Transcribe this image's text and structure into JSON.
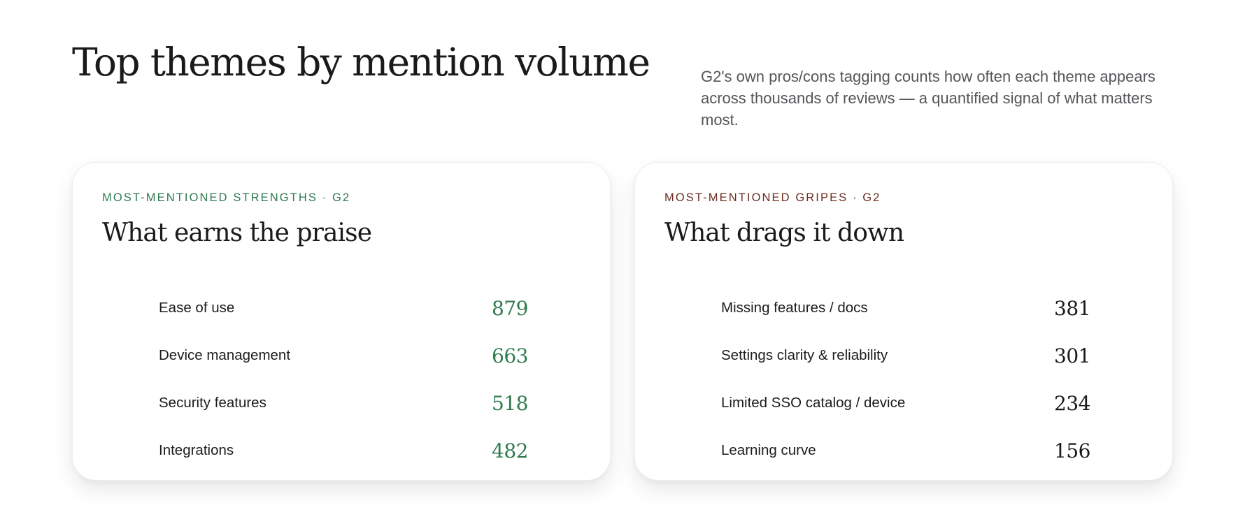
{
  "header": {
    "title": "Top themes by mention volume",
    "intro": "G2's own pros/cons tagging counts how often each theme appears across thousands of reviews — a quantified signal of what matters most."
  },
  "strengths": {
    "kicker": "Most-mentioned strengths · G2",
    "title": "What earns the praise",
    "accent": "#2f7a4f",
    "items": [
      {
        "label": "Ease of use",
        "value": "879"
      },
      {
        "label": "Device management",
        "value": "663"
      },
      {
        "label": "Security features",
        "value": "518"
      },
      {
        "label": "Integrations",
        "value": "482"
      }
    ]
  },
  "gripes": {
    "kicker": "Most-mentioned gripes · G2",
    "title": "What drags it down",
    "accent": "#6b2f22",
    "items": [
      {
        "label": "Missing features / docs",
        "value": "381"
      },
      {
        "label": "Settings clarity & reliability",
        "value": "301"
      },
      {
        "label": "Limited SSO catalog / device",
        "value": "234"
      },
      {
        "label": "Learning curve",
        "value": "156"
      }
    ]
  }
}
